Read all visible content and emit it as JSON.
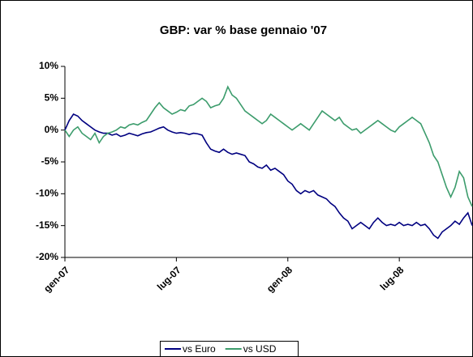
{
  "chart_data": {
    "type": "line",
    "title": "GBP: var % base gennaio '07",
    "categories": [
      "gen-07",
      null,
      null,
      null,
      null,
      null,
      null,
      null,
      null,
      null,
      null,
      null,
      null,
      null,
      null,
      null,
      null,
      null,
      null,
      null,
      null,
      null,
      null,
      null,
      null,
      null,
      "lug-07",
      null,
      null,
      null,
      null,
      null,
      null,
      null,
      null,
      null,
      null,
      null,
      null,
      null,
      null,
      null,
      null,
      null,
      null,
      null,
      null,
      null,
      null,
      null,
      null,
      null,
      "gen-08",
      null,
      null,
      null,
      null,
      null,
      null,
      null,
      null,
      null,
      null,
      null,
      null,
      null,
      null,
      null,
      null,
      null,
      null,
      null,
      null,
      null,
      null,
      null,
      null,
      null,
      "lug-08",
      null,
      null,
      null,
      null,
      null,
      null,
      null,
      null,
      null,
      null,
      null,
      null,
      null,
      null,
      null,
      null,
      null
    ],
    "series": [
      {
        "name": "vs Euro",
        "color": "#000080",
        "values": [
          0,
          1.5,
          2.5,
          2.2,
          1.5,
          1,
          0.5,
          0,
          -0.3,
          -0.5,
          -0.5,
          -0.8,
          -0.6,
          -1,
          -0.8,
          -0.5,
          -0.7,
          -0.9,
          -0.6,
          -0.4,
          -0.3,
          0,
          0.3,
          0.5,
          0,
          -0.3,
          -0.5,
          -0.4,
          -0.5,
          -0.7,
          -0.5,
          -0.6,
          -0.8,
          -2,
          -3,
          -3.3,
          -3.5,
          -3,
          -3.5,
          -3.8,
          -3.6,
          -3.8,
          -4,
          -5,
          -5.3,
          -5.8,
          -6,
          -5.5,
          -6.3,
          -6,
          -6.5,
          -7,
          -8,
          -8.5,
          -9.5,
          -10,
          -9.5,
          -9.8,
          -9.5,
          -10.2,
          -10.5,
          -10.8,
          -11.5,
          -12,
          -13,
          -13.8,
          -14.3,
          -15.5,
          -15,
          -14.5,
          -15,
          -15.5,
          -14.5,
          -13.8,
          -14.5,
          -15,
          -14.8,
          -15,
          -14.5,
          -15,
          -14.8,
          -15,
          -14.5,
          -15,
          -14.8,
          -15.5,
          -16.5,
          -17,
          -16,
          -15.5,
          -15,
          -14.3,
          -14.8,
          -13.8,
          -13,
          -15
        ]
      },
      {
        "name": "vs USD",
        "color": "#3c9c6c",
        "values": [
          0,
          -1,
          0,
          0.5,
          -0.5,
          -1,
          -1.5,
          -0.5,
          -2,
          -1,
          -0.5,
          -0.3,
          0,
          0.5,
          0.3,
          0.8,
          1,
          0.8,
          1.2,
          1.5,
          2.5,
          3.5,
          4.3,
          3.5,
          3,
          2.5,
          2.8,
          3.2,
          3,
          3.8,
          4,
          4.5,
          5,
          4.5,
          3.5,
          3.8,
          4,
          5,
          6.8,
          5.5,
          5,
          4,
          3,
          2.5,
          2,
          1.5,
          1,
          1.5,
          2.5,
          2,
          1.5,
          1,
          0.5,
          0,
          0.5,
          1,
          0.5,
          0,
          1,
          2,
          3,
          2.5,
          2,
          1.5,
          2,
          1,
          0.5,
          0,
          0.2,
          -0.5,
          0,
          0.5,
          1,
          1.5,
          1,
          0.5,
          0,
          -0.3,
          0.5,
          1,
          1.5,
          2,
          1.5,
          1,
          -0.5,
          -2,
          -4,
          -5,
          -7,
          -9,
          -10.5,
          -9,
          -6.5,
          -7.5,
          -10.5,
          -12
        ]
      }
    ],
    "ylim": [
      -20,
      10
    ],
    "yticks": [
      {
        "value": -20,
        "label": "-20%"
      },
      {
        "value": -15,
        "label": "-15%"
      },
      {
        "value": -10,
        "label": "-10%"
      },
      {
        "value": -5,
        "label": "-5%"
      },
      {
        "value": 0,
        "label": "0%"
      },
      {
        "value": 5,
        "label": "5%"
      },
      {
        "value": 10,
        "label": "10%"
      }
    ],
    "legend": "bottom"
  }
}
